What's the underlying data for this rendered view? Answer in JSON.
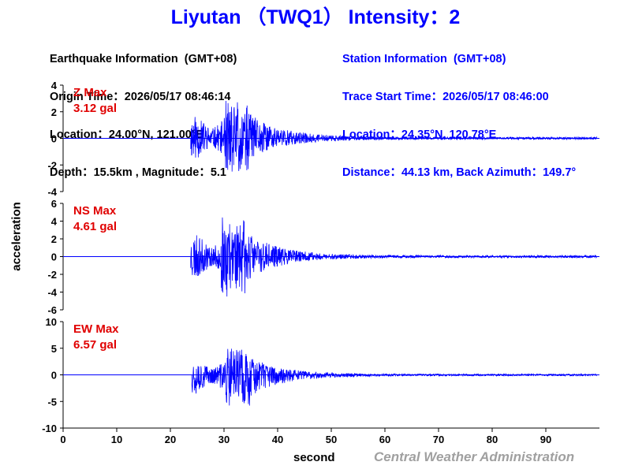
{
  "title": "Liyutan （TWQ1） Intensity：2",
  "earthquake_info": {
    "heading": "Earthquake Information  (GMT+08)",
    "origin_time": "Origin Time：2026/05/17 08:46:14",
    "location": "Location：24.00°N, 121.00°E",
    "depth_magnitude": "Depth：15.5km , Magnitude：5.1"
  },
  "station_info": {
    "heading": "Station Information  (GMT+08)",
    "trace_start": "Trace Start Time：2026/05/17 08:46:00",
    "location": "Location：24.35°N, 120.78°E",
    "distance": "Distance：44.13 km, Back Azimuth：149.7°"
  },
  "ylabel": "acceleration",
  "xlabel": "second",
  "credit": "Central Weather Administration",
  "colors": {
    "title": "#0000ff",
    "trace": "#0000ff",
    "max_label": "#e00000",
    "axis": "#000000",
    "credit": "#a0a0a0"
  },
  "chart_data": {
    "type": "line",
    "x_range": [
      0,
      100
    ],
    "x_ticks": [
      0,
      10,
      20,
      30,
      40,
      50,
      60,
      70,
      80,
      90
    ],
    "x_tick_labels": [
      "0",
      "10",
      "20",
      "30",
      "40",
      "50",
      "60",
      "70",
      "80",
      "90"
    ],
    "panels": [
      {
        "component": "Z",
        "max_label": "Z Max",
        "max_value": "3.12 gal",
        "ylim": [
          -4,
          4
        ],
        "y_ticks": [
          4,
          2,
          0,
          -2,
          -4
        ],
        "y_tick_labels": [
          "4",
          "2",
          "0",
          "-2",
          "-4"
        ],
        "peak_pos": 3.12,
        "peak_neg": -2.8,
        "onset_s": 23.8,
        "peak_s": 32,
        "seed": 11
      },
      {
        "component": "NS",
        "max_label": "NS Max",
        "max_value": "4.61 gal",
        "ylim": [
          -6,
          6
        ],
        "y_ticks": [
          6,
          4,
          2,
          0,
          -2,
          -4,
          -6
        ],
        "y_tick_labels": [
          "6",
          "4",
          "2",
          "0",
          "-2",
          "-4",
          "-6"
        ],
        "peak_pos": 4.61,
        "peak_neg": -4.5,
        "onset_s": 23.8,
        "peak_s": 31.5,
        "seed": 23
      },
      {
        "component": "EW",
        "max_label": "EW Max",
        "max_value": "6.57 gal",
        "ylim": [
          -10,
          10
        ],
        "y_ticks": [
          10,
          5,
          0,
          -5,
          -10
        ],
        "y_tick_labels": [
          "10",
          "5",
          "0",
          "-5",
          "-10"
        ],
        "peak_pos": 5.3,
        "peak_neg": -6.57,
        "onset_s": 24.0,
        "peak_s": 32.3,
        "seed": 37
      }
    ]
  }
}
